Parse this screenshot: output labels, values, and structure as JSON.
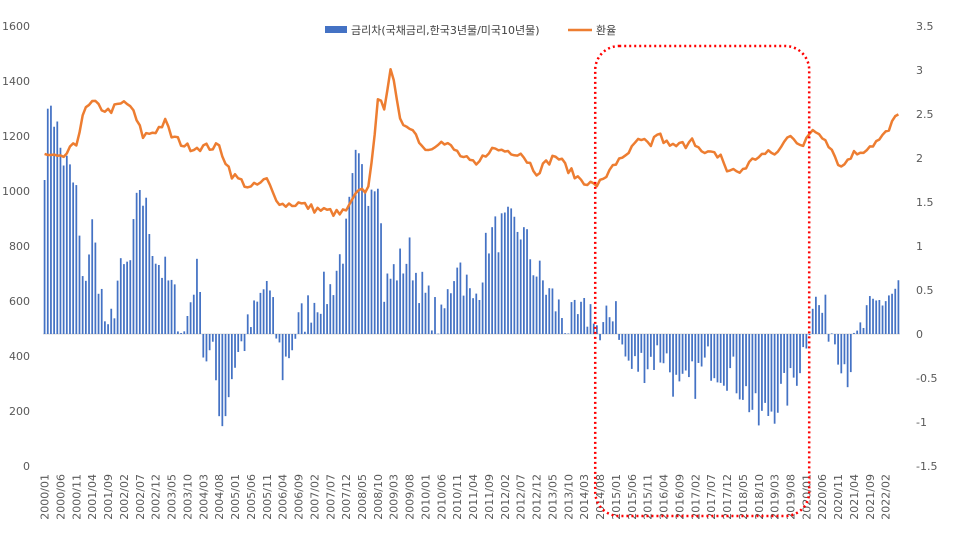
{
  "chart_data": {
    "type": "bar+line",
    "title": "",
    "legend": [
      {
        "name": "금리차(국채금리,한국3년물/미국10년물)",
        "type": "bar",
        "color": "#4472C4"
      },
      {
        "name": "환율",
        "type": "line",
        "color": "#ED7D31"
      }
    ],
    "legend_position": "top-center",
    "y_left": {
      "min": 0,
      "max": 1600,
      "ticks": [
        "0",
        "200",
        "400",
        "600",
        "800",
        "1000",
        "1200",
        "1400",
        "1600"
      ],
      "series": "환율"
    },
    "y_right": {
      "min": -1.5,
      "max": 3.5,
      "ticks": [
        "-1.5",
        "-1",
        "-0.5",
        "0",
        "0.5",
        "1",
        "1.5",
        "2",
        "2.5",
        "3",
        "3.5"
      ],
      "series": "금리차(국채금리,한국3년물/미국10년물)"
    },
    "x_start": "2000/01",
    "x_end": "2022/06",
    "x_ticks": [
      "2000/01",
      "2000/06",
      "2000/11",
      "2001/04",
      "2001/09",
      "2002/02",
      "2002/07",
      "2002/12",
      "2003/05",
      "2003/10",
      "2004/03",
      "2004/08",
      "2005/01",
      "2005/06",
      "2005/11",
      "2006/04",
      "2006/09",
      "2007/02",
      "2007/07",
      "2007/12",
      "2008/05",
      "2008/10",
      "2009/03",
      "2009/08",
      "2010/01",
      "2010/06",
      "2010/11",
      "2011/04",
      "2011/09",
      "2012/02",
      "2012/07",
      "2012/12",
      "2013/05",
      "2013/10",
      "2014/03",
      "2014/08",
      "2015/01",
      "2015/06",
      "2015/11",
      "2016/04",
      "2016/09",
      "2017/02",
      "2017/07",
      "2017/12",
      "2018/05",
      "2018/10",
      "2019/03",
      "2019/08",
      "2020/01",
      "2020/06",
      "2020/11",
      "2021/04",
      "2021/09",
      "2022/02"
    ],
    "exchange_rate_anchors": [
      [
        "2000/01",
        1130
      ],
      [
        "2000/06",
        1115
      ],
      [
        "2000/11",
        1170
      ],
      [
        "2001/01",
        1280
      ],
      [
        "2001/04",
        1320
      ],
      [
        "2001/09",
        1290
      ],
      [
        "2002/02",
        1320
      ],
      [
        "2002/04",
        1310
      ],
      [
        "2002/08",
        1200
      ],
      [
        "2002/12",
        1220
      ],
      [
        "2003/03",
        1250
      ],
      [
        "2003/05",
        1200
      ],
      [
        "2003/10",
        1160
      ],
      [
        "2004/03",
        1160
      ],
      [
        "2004/08",
        1160
      ],
      [
        "2004/12",
        1060
      ],
      [
        "2005/06",
        1010
      ],
      [
        "2005/11",
        1040
      ],
      [
        "2006/01",
        990
      ],
      [
        "2006/04",
        950
      ],
      [
        "2006/09",
        955
      ],
      [
        "2007/02",
        935
      ],
      [
        "2007/07",
        925
      ],
      [
        "2007/10",
        915
      ],
      [
        "2008/01",
        940
      ],
      [
        "2008/03",
        985
      ],
      [
        "2008/07",
        1010
      ],
      [
        "2008/10",
        1320
      ],
      [
        "2008/12",
        1310
      ],
      [
        "2009/02",
        1450
      ],
      [
        "2009/03",
        1390
      ],
      [
        "2009/05",
        1250
      ],
      [
        "2009/08",
        1240
      ],
      [
        "2010/01",
        1150
      ],
      [
        "2010/05",
        1180
      ],
      [
        "2010/09",
        1160
      ],
      [
        "2011/01",
        1120
      ],
      [
        "2011/05",
        1090
      ],
      [
        "2011/09",
        1150
      ],
      [
        "2011/12",
        1150
      ],
      [
        "2012/07",
        1140
      ],
      [
        "2012/12",
        1070
      ],
      [
        "2013/06",
        1130
      ],
      [
        "2013/12",
        1055
      ],
      [
        "2014/06",
        1020
      ],
      [
        "2014/09",
        1035
      ],
      [
        "2014/12",
        1100
      ],
      [
        "2015/03",
        1110
      ],
      [
        "2015/08",
        1180
      ],
      [
        "2015/12",
        1170
      ],
      [
        "2016/02",
        1210
      ],
      [
        "2016/06",
        1160
      ],
      [
        "2016/11",
        1170
      ],
      [
        "2017/01",
        1200
      ],
      [
        "2017/04",
        1135
      ],
      [
        "2017/10",
        1130
      ],
      [
        "2017/12",
        1075
      ],
      [
        "2018/04",
        1070
      ],
      [
        "2018/10",
        1130
      ],
      [
        "2019/04",
        1140
      ],
      [
        "2019/08",
        1210
      ],
      [
        "2019/12",
        1160
      ],
      [
        "2020/03",
        1225
      ],
      [
        "2020/07",
        1195
      ],
      [
        "2020/12",
        1085
      ],
      [
        "2021/03",
        1130
      ],
      [
        "2021/07",
        1150
      ],
      [
        "2021/12",
        1185
      ],
      [
        "2022/03",
        1220
      ],
      [
        "2022/06",
        1290
      ]
    ],
    "spread_anchors": [
      [
        "2000/01",
        2.0
      ],
      [
        "2000/03",
        2.7
      ],
      [
        "2000/06",
        2.1
      ],
      [
        "2000/11",
        1.6
      ],
      [
        "2001/01",
        0.5
      ],
      [
        "2001/04",
        1.2
      ],
      [
        "2001/09",
        -0.1
      ],
      [
        "2001/12",
        0.6
      ],
      [
        "2002/04",
        0.8
      ],
      [
        "2002/07",
        1.7
      ],
      [
        "2002/12",
        0.9
      ],
      [
        "2003/05",
        0.5
      ],
      [
        "2003/09",
        0.0
      ],
      [
        "2003/12",
        0.6
      ],
      [
        "2004/02",
        0.7
      ],
      [
        "2004/03",
        -0.2
      ],
      [
        "2004/06",
        -0.3
      ],
      [
        "2004/09",
        -1.0
      ],
      [
        "2005/01",
        -0.3
      ],
      [
        "2005/06",
        0.1
      ],
      [
        "2005/11",
        0.6
      ],
      [
        "2006/04",
        -0.4
      ],
      [
        "2006/09",
        0.1
      ],
      [
        "2007/02",
        0.4
      ],
      [
        "2007/07",
        0.5
      ],
      [
        "2007/12",
        1.1
      ],
      [
        "2008/03",
        1.9
      ],
      [
        "2008/07",
        1.7
      ],
      [
        "2008/10",
        1.9
      ],
      [
        "2008/12",
        0.5
      ],
      [
        "2009/03",
        0.7
      ],
      [
        "2009/08",
        0.9
      ],
      [
        "2010/01",
        0.4
      ],
      [
        "2010/06",
        0.1
      ],
      [
        "2010/11",
        0.9
      ],
      [
        "2011/04",
        0.3
      ],
      [
        "2011/09",
        1.1
      ],
      [
        "2012/02",
        1.2
      ],
      [
        "2012/07",
        1.2
      ],
      [
        "2012/12",
        0.7
      ],
      [
        "2013/05",
        0.4
      ],
      [
        "2013/10",
        0.1
      ],
      [
        "2014/03",
        0.2
      ],
      [
        "2014/06",
        0.3
      ],
      [
        "2014/08",
        -0.1
      ],
      [
        "2015/01",
        0.4
      ],
      [
        "2015/03",
        -0.2
      ],
      [
        "2015/06",
        -0.4
      ],
      [
        "2015/11",
        -0.3
      ],
      [
        "2016/04",
        -0.2
      ],
      [
        "2016/09",
        -0.7
      ],
      [
        "2017/02",
        -0.5
      ],
      [
        "2017/07",
        -0.3
      ],
      [
        "2017/12",
        -0.4
      ],
      [
        "2018/05",
        -0.6
      ],
      [
        "2018/10",
        -1.0
      ],
      [
        "2019/03",
        -0.8
      ],
      [
        "2019/08",
        -0.6
      ],
      [
        "2019/12",
        -0.2
      ],
      [
        "2020/03",
        0.4
      ],
      [
        "2020/07",
        0.2
      ],
      [
        "2020/11",
        -0.1
      ],
      [
        "2021/02",
        -0.4
      ],
      [
        "2021/04",
        -0.2
      ],
      [
        "2021/07",
        0.1
      ],
      [
        "2021/09",
        0.2
      ],
      [
        "2022/01",
        0.4
      ],
      [
        "2022/06",
        0.5
      ]
    ],
    "annotation": {
      "type": "dashed-rounded-rectangle",
      "color": "#FF0000",
      "from": "2014/09",
      "to": "2019/12"
    },
    "grid": false
  }
}
